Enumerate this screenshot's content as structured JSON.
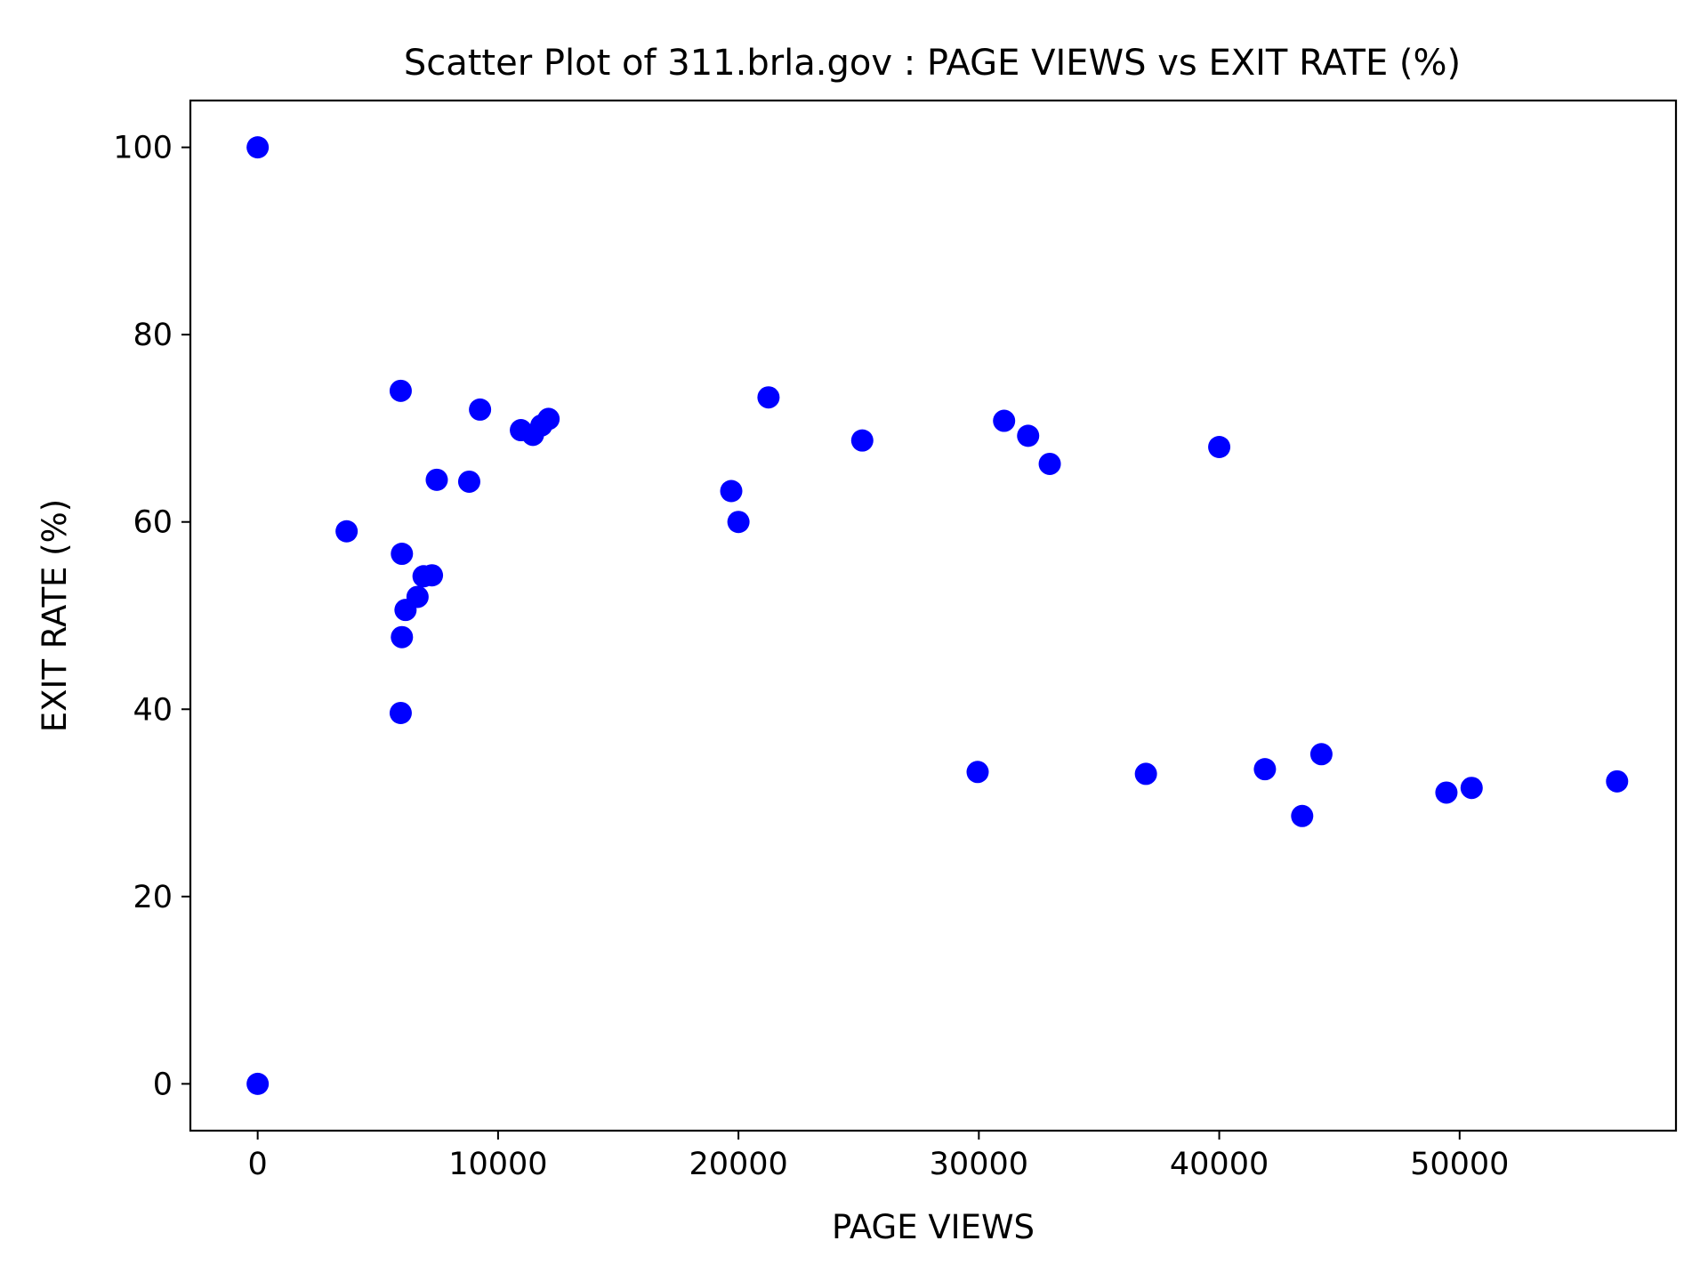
{
  "chart_data": {
    "type": "scatter",
    "title": "Scatter Plot of 311.brla.gov : PAGE VIEWS vs EXIT RATE (%)",
    "xlabel": "PAGE VIEWS",
    "ylabel": "EXIT RATE (%)",
    "xlim": [
      -2800,
      59000
    ],
    "ylim": [
      -5,
      105
    ],
    "xticks": [
      0,
      10000,
      20000,
      30000,
      40000,
      50000
    ],
    "yticks": [
      0,
      20,
      40,
      60,
      80,
      100
    ],
    "grid": false,
    "marker_color": "#0000ff",
    "points": [
      {
        "x": 0,
        "y": 100
      },
      {
        "x": 0,
        "y": 0
      },
      {
        "x": 3700,
        "y": 59
      },
      {
        "x": 5950,
        "y": 74
      },
      {
        "x": 6000,
        "y": 56.6
      },
      {
        "x": 6000,
        "y": 47.7
      },
      {
        "x": 5950,
        "y": 39.6
      },
      {
        "x": 6150,
        "y": 50.6
      },
      {
        "x": 6650,
        "y": 52
      },
      {
        "x": 6900,
        "y": 54.2
      },
      {
        "x": 7250,
        "y": 54.3
      },
      {
        "x": 7450,
        "y": 64.5
      },
      {
        "x": 8800,
        "y": 64.3
      },
      {
        "x": 9250,
        "y": 72
      },
      {
        "x": 10950,
        "y": 69.8
      },
      {
        "x": 11450,
        "y": 69.3
      },
      {
        "x": 11800,
        "y": 70.3
      },
      {
        "x": 12100,
        "y": 71
      },
      {
        "x": 19700,
        "y": 63.3
      },
      {
        "x": 20000,
        "y": 60
      },
      {
        "x": 21250,
        "y": 73.3
      },
      {
        "x": 25150,
        "y": 68.7
      },
      {
        "x": 29950,
        "y": 33.3
      },
      {
        "x": 31050,
        "y": 70.8
      },
      {
        "x": 32050,
        "y": 69.2
      },
      {
        "x": 32950,
        "y": 66.2
      },
      {
        "x": 36950,
        "y": 33.1
      },
      {
        "x": 40000,
        "y": 68
      },
      {
        "x": 41900,
        "y": 33.6
      },
      {
        "x": 43450,
        "y": 28.6
      },
      {
        "x": 44250,
        "y": 35.2
      },
      {
        "x": 49450,
        "y": 31.1
      },
      {
        "x": 50500,
        "y": 31.6
      },
      {
        "x": 56550,
        "y": 32.3
      }
    ]
  }
}
